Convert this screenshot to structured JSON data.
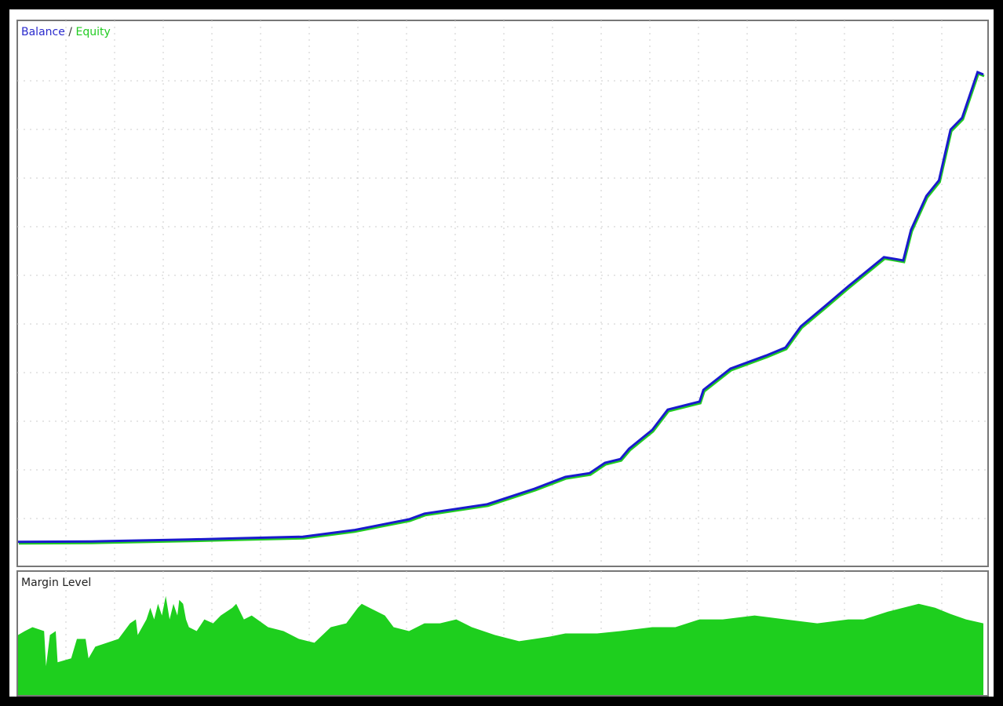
{
  "chart_data": [
    {
      "type": "line",
      "title": "",
      "legend": {
        "balance": "Balance",
        "separator": " / ",
        "equity": "Equity",
        "placement": "top-left"
      },
      "xlabel": "",
      "ylabel": "",
      "grid": true,
      "xlim": [
        0,
        100
      ],
      "ylim": [
        -3,
        105
      ],
      "colors": {
        "balance": "#1a1acd",
        "equity": "#22cc22"
      },
      "series": [
        {
          "name": "Balance",
          "points": [
            [
              0,
              0.2
            ],
            [
              7.6,
              0.3
            ],
            [
              17.7,
              0.7
            ],
            [
              23.4,
              1
            ],
            [
              29.5,
              1.3
            ],
            [
              34.8,
              2.7
            ],
            [
              40.5,
              5
            ],
            [
              42.1,
              6.2
            ],
            [
              48.6,
              8.2
            ],
            [
              53.5,
              11.5
            ],
            [
              56.7,
              14
            ],
            [
              59.2,
              14.8
            ],
            [
              60.8,
              17
            ],
            [
              62.4,
              17.8
            ],
            [
              63.3,
              20
            ],
            [
              65.7,
              24
            ],
            [
              67.3,
              28.3
            ],
            [
              70.6,
              30
            ],
            [
              71,
              32.5
            ],
            [
              73.8,
              37
            ],
            [
              77.5,
              39.8
            ],
            [
              79.5,
              41.5
            ],
            [
              81.1,
              46
            ],
            [
              83.6,
              50.3
            ],
            [
              86,
              54.5
            ],
            [
              89.7,
              60.7
            ],
            [
              91.7,
              60
            ],
            [
              92.5,
              66.5
            ],
            [
              94.1,
              73.7
            ],
            [
              95.4,
              77
            ],
            [
              96.6,
              87.8
            ],
            [
              97.8,
              90.3
            ],
            [
              99.4,
              100
            ],
            [
              100,
              99.5
            ]
          ]
        },
        {
          "name": "Equity",
          "same_as": "Balance"
        }
      ]
    },
    {
      "type": "area",
      "title": "Margin Level",
      "xlabel": "",
      "ylabel": "",
      "grid": true,
      "xlim": [
        0,
        100
      ],
      "ylim": [
        0,
        159
      ],
      "colors": {
        "fill": "#1ecf1e"
      },
      "points": [
        [
          0,
          77
        ],
        [
          0.7,
          82
        ],
        [
          1.5,
          87
        ],
        [
          2.7,
          82
        ],
        [
          2.9,
          37
        ],
        [
          3.3,
          77
        ],
        [
          3.9,
          82
        ],
        [
          4.1,
          42
        ],
        [
          5.5,
          47
        ],
        [
          6.1,
          72
        ],
        [
          7,
          72
        ],
        [
          7.3,
          47
        ],
        [
          8,
          62
        ],
        [
          10.4,
          72
        ],
        [
          11.6,
          92
        ],
        [
          12.2,
          97
        ],
        [
          12.4,
          77
        ],
        [
          13.3,
          97
        ],
        [
          13.7,
          112
        ],
        [
          14.1,
          97
        ],
        [
          14.5,
          117
        ],
        [
          14.9,
          102
        ],
        [
          15.3,
          127
        ],
        [
          15.7,
          97
        ],
        [
          16.1,
          117
        ],
        [
          16.5,
          102
        ],
        [
          16.7,
          122
        ],
        [
          17.1,
          117
        ],
        [
          17.4,
          97
        ],
        [
          17.7,
          87
        ],
        [
          18.5,
          82
        ],
        [
          19.3,
          97
        ],
        [
          20.2,
          92
        ],
        [
          21,
          102
        ],
        [
          22.2,
          112
        ],
        [
          22.6,
          117
        ],
        [
          23.4,
          97
        ],
        [
          24.2,
          102
        ],
        [
          25.9,
          87
        ],
        [
          27.5,
          82
        ],
        [
          29.1,
          72
        ],
        [
          30.7,
          67
        ],
        [
          32.4,
          87
        ],
        [
          34,
          92
        ],
        [
          35.2,
          112
        ],
        [
          35.6,
          117
        ],
        [
          36.4,
          112
        ],
        [
          38,
          102
        ],
        [
          38.9,
          87
        ],
        [
          40.5,
          82
        ],
        [
          42.1,
          92
        ],
        [
          43.7,
          92
        ],
        [
          45.4,
          97
        ],
        [
          47,
          87
        ],
        [
          49.4,
          77
        ],
        [
          51.9,
          69
        ],
        [
          53.5,
          72
        ],
        [
          55.1,
          75
        ],
        [
          56.7,
          79
        ],
        [
          60,
          79
        ],
        [
          62.4,
          82
        ],
        [
          65.7,
          87
        ],
        [
          68.1,
          87
        ],
        [
          70.6,
          97
        ],
        [
          73,
          97
        ],
        [
          76.3,
          102
        ],
        [
          79.5,
          97
        ],
        [
          82.8,
          92
        ],
        [
          86,
          97
        ],
        [
          87.6,
          97
        ],
        [
          90.1,
          107
        ],
        [
          93.3,
          117
        ],
        [
          95,
          112
        ],
        [
          96.6,
          104
        ],
        [
          98.2,
          97
        ],
        [
          100,
          92
        ]
      ]
    }
  ]
}
